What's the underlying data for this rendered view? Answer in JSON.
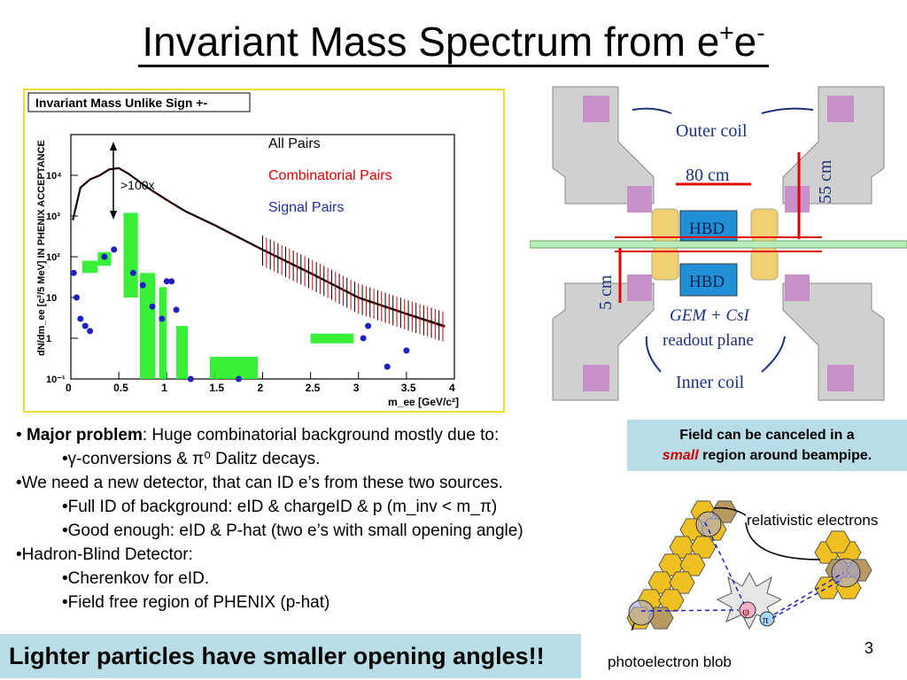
{
  "title": {
    "text": "Invariant Mass Spectrum from e",
    "sup1": "+",
    "mid": "e",
    "sup2": "-"
  },
  "plot": {
    "header": "Invariant Mass Unlike Sign +-",
    "ylabel": "dN/dm_ee [c²/5 MeV] IN PHENIX ACCEPTANCE",
    "xlabel": "m_ee [GeV/c²]",
    "annotation": ">100x",
    "legend": {
      "all": "All Pairs",
      "combinatorial": "Combinatorial Pairs",
      "signal": "Signal Pairs"
    },
    "colors": {
      "all": "#000000",
      "combinatorial": "#e00000",
      "signal": "#2020c0",
      "syst": "#22ee22"
    }
  },
  "chart_data": {
    "type": "scatter",
    "title": "Invariant Mass Unlike Sign +-",
    "xlabel": "m_ee [GeV/c²]",
    "ylabel": "dN/dm_ee [c²/5 MeV] IN PHENIX ACCEPTANCE",
    "xlim": [
      0,
      4
    ],
    "ylim": [
      0.1,
      100000
    ],
    "yscale": "log",
    "x_ticks": [
      "0",
      "0.5",
      "1",
      "1.5",
      "2",
      "2.5",
      "3",
      "3.5",
      "4"
    ],
    "y_ticks": [
      "10⁻¹",
      "1",
      "10",
      "10²",
      "10³",
      "10⁴"
    ],
    "series": [
      {
        "name": "All Pairs",
        "x": [
          0.02,
          0.1,
          0.2,
          0.3,
          0.4,
          0.5,
          0.6,
          0.8,
          1.0,
          1.2,
          1.5,
          2.0,
          2.5,
          3.0,
          3.5,
          3.9
        ],
        "y": [
          800,
          5000,
          8000,
          10000,
          14000,
          15000,
          11000,
          5000,
          2500,
          1300,
          600,
          150,
          40,
          10,
          4,
          2
        ]
      },
      {
        "name": "Combinatorial Pairs",
        "x": [
          0.02,
          0.1,
          0.2,
          0.3,
          0.4,
          0.5,
          0.6,
          0.8,
          1.0,
          1.2,
          1.5,
          2.0,
          2.5,
          3.0,
          3.5,
          3.9
        ],
        "y": [
          790,
          4900,
          7900,
          9900,
          13900,
          14900,
          10900,
          4950,
          2450,
          1280,
          590,
          148,
          39,
          9.8,
          3.9,
          1.9
        ]
      },
      {
        "name": "Signal Pairs",
        "x": [
          0.03,
          0.06,
          0.1,
          0.15,
          0.2,
          0.35,
          0.45,
          0.65,
          0.75,
          0.85,
          0.95,
          1.0,
          1.05,
          1.1,
          1.25,
          1.75,
          3.05,
          3.1,
          3.3,
          3.5
        ],
        "y": [
          40,
          10,
          3,
          2,
          1.5,
          100,
          150,
          40,
          20,
          6,
          3,
          25,
          25,
          5,
          0.1,
          0.1,
          1,
          2,
          0.2,
          0.5
        ]
      }
    ]
  },
  "detector": {
    "outer_coil": "Outer coil",
    "dim_80": "80 cm",
    "dim_55": "55 cm",
    "dim_5": "5 cm",
    "hbd": "HBD",
    "gem": "GEM + CsI",
    "readout": "readout plane",
    "inner_coil": "Inner coil"
  },
  "bullets": {
    "b1_bold": "Major problem",
    "b1_rest": ": Huge combinatorial background mostly due to:",
    "b1a": "•γ-conversions & π⁰ Dalitz decays.",
    "b2": "•We need a new detector, that can ID e’s from these two sources.",
    "b2a": "•Full ID of background:  eID & chargeID &  p (m_inv < m_π)",
    "b2b": "•Good enough:  eID & P-hat (two e’s with small opening angle)",
    "b3": "•Hadron-Blind Detector:",
    "b3a": "•Cherenkov for eID.",
    "b3b": "•Field free region of PHENIX (p-hat)"
  },
  "fieldbox": {
    "line1": "Field can be canceled in a",
    "red": "small",
    "line2rest": " region around beampipe."
  },
  "hex": {
    "relativistic": "relativistic electrons",
    "blob": "photoelectron blob",
    "phi": "φ",
    "pi": "π"
  },
  "footer": {
    "bottom": "Lighter particles have smaller opening angles!!",
    "page": "3"
  }
}
